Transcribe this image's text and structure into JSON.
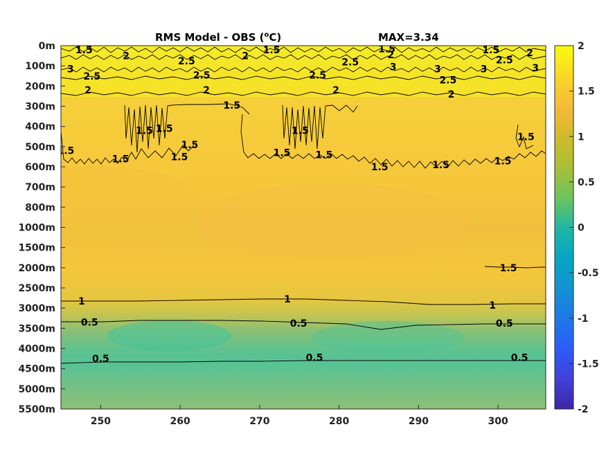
{
  "chart_data": {
    "type": "heatmap",
    "title": "RMS Model - OBS (",
    "title_superscript": "o",
    "title_unit_suffix": "C)",
    "annotation": "MAX=3.34",
    "x_ticks": [
      250,
      260,
      270,
      280,
      290,
      300
    ],
    "xlim": [
      245,
      306
    ],
    "y_tick_labels": [
      "0m",
      "100m",
      "200m",
      "300m",
      "400m",
      "500m",
      "600m",
      "700m",
      "800m",
      "1000m",
      "1500m",
      "2000m",
      "2500m",
      "3000m",
      "3500m",
      "4000m",
      "4500m",
      "5000m",
      "5500m"
    ],
    "colorbar": {
      "colormap": "parula",
      "range": [
        -2,
        2
      ],
      "tick_labels": [
        "2",
        "1.5",
        "1",
        "0.5",
        "0",
        "-0.5",
        "-1",
        "-1.5",
        "-2"
      ]
    },
    "contour_labels": [
      {
        "text": "1.5",
        "x": 247.9,
        "y": 0.2
      },
      {
        "text": "2",
        "x": 253.2,
        "y": 0.5
      },
      {
        "text": "1.5",
        "x": 271.5,
        "y": 0.2
      },
      {
        "text": "1.5",
        "x": 286.0,
        "y": 0.15
      },
      {
        "text": "2",
        "x": 286.5,
        "y": 0.45
      },
      {
        "text": "1.5",
        "x": 299.1,
        "y": 0.2
      },
      {
        "text": "2",
        "x": 304.0,
        "y": 0.35
      },
      {
        "text": "2",
        "x": 268.2,
        "y": 0.5
      },
      {
        "text": "2.5",
        "x": 260.8,
        "y": 0.75
      },
      {
        "text": "2.5",
        "x": 281.4,
        "y": 0.8
      },
      {
        "text": "2.5",
        "x": 300.8,
        "y": 0.7
      },
      {
        "text": "3",
        "x": 246.2,
        "y": 1.15
      },
      {
        "text": "3",
        "x": 286.8,
        "y": 1.05
      },
      {
        "text": "3",
        "x": 292.4,
        "y": 1.15
      },
      {
        "text": "3",
        "x": 298.2,
        "y": 1.15
      },
      {
        "text": "3",
        "x": 304.7,
        "y": 1.1
      },
      {
        "text": "2.5",
        "x": 248.9,
        "y": 1.5
      },
      {
        "text": "2.5",
        "x": 262.7,
        "y": 1.45
      },
      {
        "text": "2.5",
        "x": 277.3,
        "y": 1.45
      },
      {
        "text": "2.5",
        "x": 293.7,
        "y": 1.7
      },
      {
        "text": "2",
        "x": 248.4,
        "y": 2.2
      },
      {
        "text": "2",
        "x": 263.3,
        "y": 2.2
      },
      {
        "text": "2",
        "x": 279.6,
        "y": 2.2
      },
      {
        "text": "2",
        "x": 294.1,
        "y": 2.4
      },
      {
        "text": "1.5",
        "x": 266.5,
        "y": 2.95
      },
      {
        "text": "1.5",
        "x": 255.5,
        "y": 4.2
      },
      {
        "text": "1.5",
        "x": 258.0,
        "y": 4.1
      },
      {
        "text": "1.5",
        "x": 261.2,
        "y": 4.9
      },
      {
        "text": "1.5",
        "x": 275.1,
        "y": 4.2
      },
      {
        "text": "1.5",
        "x": 303.5,
        "y": 4.5
      },
      {
        "text": "1.5",
        "x": 245.6,
        "y": 5.2
      },
      {
        "text": "1.5",
        "x": 252.5,
        "y": 5.6
      },
      {
        "text": "1.5",
        "x": 259.9,
        "y": 5.5
      },
      {
        "text": "1.5",
        "x": 272.8,
        "y": 5.3
      },
      {
        "text": "1.5",
        "x": 278.1,
        "y": 5.4
      },
      {
        "text": "1.5",
        "x": 285.1,
        "y": 6.0
      },
      {
        "text": "1.5",
        "x": 292.8,
        "y": 5.9
      },
      {
        "text": "1.5",
        "x": 300.6,
        "y": 5.7
      },
      {
        "text": "1.5",
        "x": 301.3,
        "y": 11.0
      },
      {
        "text": "1",
        "x": 247.6,
        "y": 12.65
      },
      {
        "text": "1",
        "x": 273.5,
        "y": 12.55
      },
      {
        "text": "1",
        "x": 299.3,
        "y": 12.85
      },
      {
        "text": "0.5",
        "x": 248.6,
        "y": 13.7
      },
      {
        "text": "0.5",
        "x": 274.9,
        "y": 13.75
      },
      {
        "text": "0.5",
        "x": 300.8,
        "y": 13.75
      },
      {
        "text": "0.5",
        "x": 250.0,
        "y": 15.5
      },
      {
        "text": "0.5",
        "x": 276.9,
        "y": 15.45
      },
      {
        "text": "0.5",
        "x": 302.7,
        "y": 15.45
      }
    ]
  }
}
